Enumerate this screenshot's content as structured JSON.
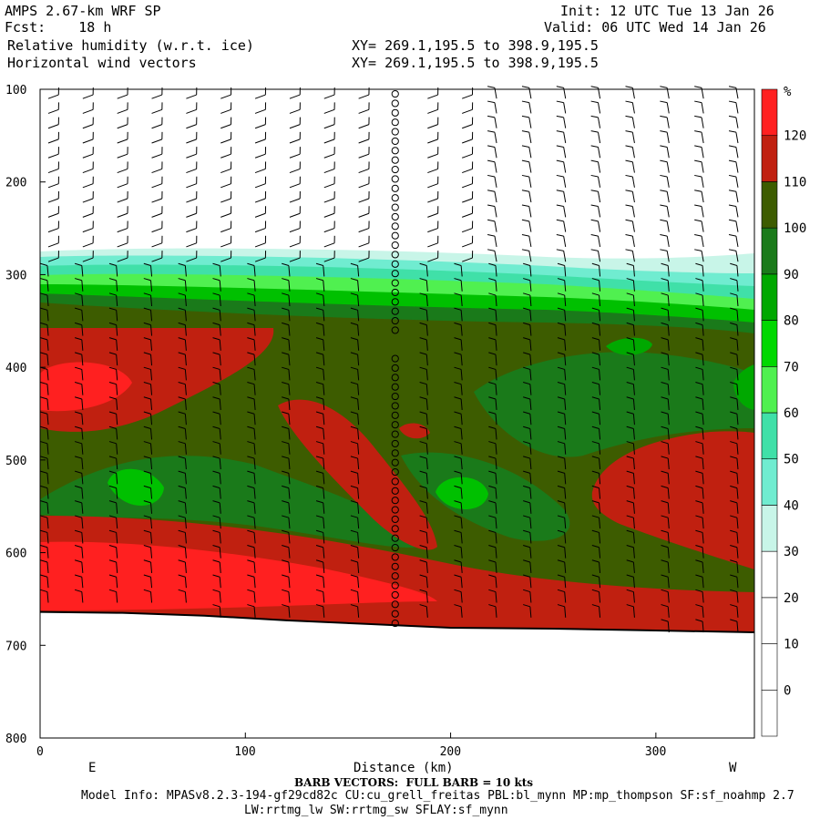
{
  "header": {
    "model": "AMPS 2.67-km WRF SP",
    "fcst": "Fcst:    18 h",
    "init": "Init: 12 UTC Tue 13 Jan 26",
    "valid": "Valid: 06 UTC Wed 14 Jan 26",
    "field1": "Relative humidity (w.r.t. ice)",
    "field2": "Horizontal wind vectors",
    "xy1": "XY= 269.1,195.5 to 398.9,195.5",
    "xy2": "XY= 269.1,195.5 to 398.9,195.5"
  },
  "footer": {
    "barb_note": "BARB VECTORS:  FULL BARB = 10 kts",
    "model_info": "Model Info: MPASv8.2.3-194-gf29cd82c CU:cu_grell_freitas PBL:bl_mynn MP:mp_thompson SF:sf_noahmp 2.7",
    "model_info2": "LW:rrtmg_lw SW:rrtmg_sw SFLAY:sf_mynn"
  },
  "chart_data": {
    "type": "heatmap",
    "xlabel": "Distance (km)",
    "ylabel": "",
    "xlim": [
      0,
      348
    ],
    "ylim": [
      800,
      100
    ],
    "x_ticks": [
      0,
      100,
      200,
      300
    ],
    "y_ticks": [
      100,
      200,
      300,
      400,
      500,
      600,
      700,
      800
    ],
    "end_labels": [
      "E",
      "W"
    ],
    "colorbar": {
      "unit": "%",
      "levels": [
        0,
        10,
        20,
        30,
        40,
        50,
        60,
        70,
        80,
        90,
        100,
        110,
        120
      ],
      "colors": [
        "#ffffff",
        "#ffffff",
        "#ffffff",
        "#ffffff",
        "#c8f5e8",
        "#70ecd0",
        "#40e0a8",
        "#50f050",
        "#00d800",
        "#00a800",
        "#1a7a1a",
        "#3d5c00",
        "#c02010",
        "#ff2020"
      ]
    },
    "terrain_pressure": [
      [
        0,
        664
      ],
      [
        40,
        665
      ],
      [
        80,
        668
      ],
      [
        120,
        673
      ],
      [
        160,
        677
      ],
      [
        200,
        681
      ],
      [
        250,
        682
      ],
      [
        300,
        684
      ],
      [
        348,
        686
      ]
    ],
    "rh_layers": [
      {
        "range": "< 30",
        "top": 100,
        "bottom": 270
      },
      {
        "range": "30-90",
        "top": 270,
        "bottom": 330
      },
      {
        "range": "90-110",
        "top": 330,
        "bottom": 560
      },
      {
        "range": "> 110",
        "top": 560,
        "bottom": 680
      }
    ],
    "barb_note": "FULL BARB = 10 kts"
  },
  "colors": {
    "accent": "#ff2020",
    "terrain_line": "#000000"
  }
}
